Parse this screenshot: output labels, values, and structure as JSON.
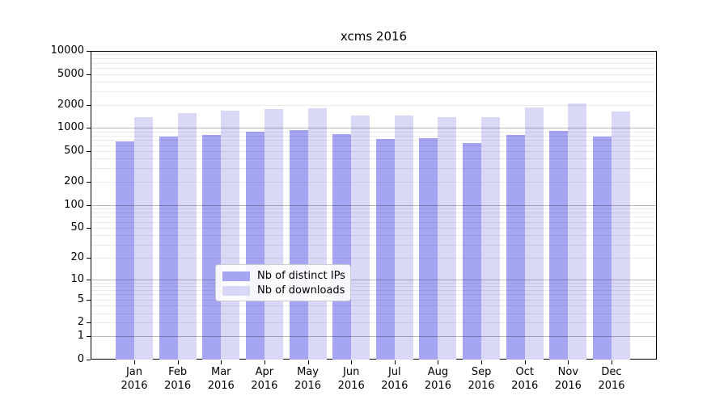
{
  "title": "xcms 2016",
  "chart_data": {
    "type": "bar",
    "title": "xcms 2016",
    "scale": "log1p",
    "ylim": [
      0,
      10000
    ],
    "yticks": [
      0,
      1,
      2,
      5,
      10,
      20,
      50,
      100,
      200,
      500,
      1000,
      2000,
      5000,
      10000
    ],
    "grid": "horizontal; faint minor lines at 2-9 per decade, darker lines at powers of 10, drawn over bars",
    "categories": [
      "Jan",
      "Feb",
      "Mar",
      "Apr",
      "May",
      "Jun",
      "Jul",
      "Aug",
      "Sep",
      "Oct",
      "Nov",
      "Dec"
    ],
    "year": "2016",
    "series": [
      {
        "name": "Nb of distinct IPs",
        "color": "#a5a5f2",
        "values": [
          670,
          770,
          820,
          890,
          940,
          835,
          730,
          745,
          640,
          820,
          910,
          770
        ]
      },
      {
        "name": "Nb of downloads",
        "color": "#d9d9f7",
        "values": [
          1400,
          1580,
          1660,
          1760,
          1800,
          1460,
          1440,
          1390,
          1400,
          1830,
          2080,
          1630
        ]
      }
    ],
    "legend_position": "inside-bottom-center"
  },
  "legend": {
    "items": [
      {
        "label": "Nb of distinct IPs"
      },
      {
        "label": "Nb of downloads"
      }
    ]
  },
  "colors": {
    "distinct_ips": "#a5a5f2",
    "downloads": "#d9d9f7",
    "spine": "#000000",
    "legend_border": "#cccccc"
  }
}
